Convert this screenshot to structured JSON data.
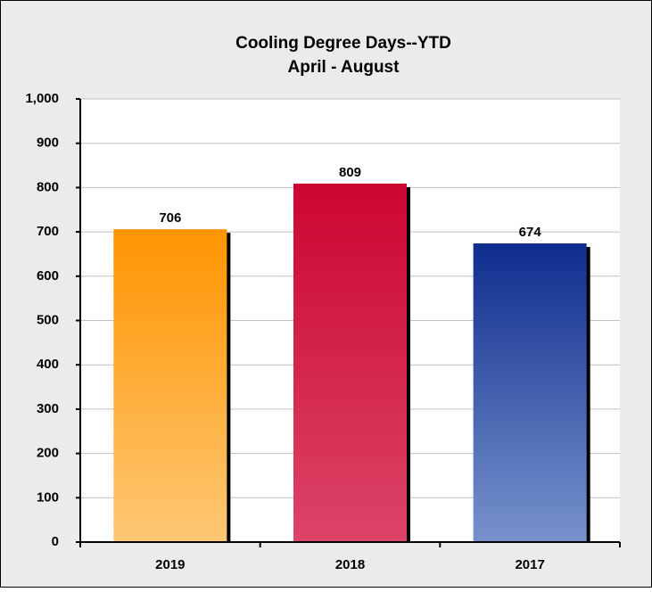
{
  "chart_data": {
    "type": "bar",
    "title": "Cooling Degree Days--YTD",
    "subtitle": "April  - August",
    "categories": [
      "2019",
      "2018",
      "2017"
    ],
    "values": [
      706,
      809,
      674
    ],
    "colors": [
      "#ff9400",
      "#cc0630",
      "#0f2d8e"
    ],
    "gradient_bottom_colors": [
      "#ffc874",
      "#dc4468",
      "#7792cc"
    ],
    "ylim": [
      0,
      1000
    ],
    "yticks": [
      0,
      100,
      200,
      300,
      400,
      500,
      600,
      700,
      800,
      900,
      {
        "value": 1000,
        "label": "1,000"
      }
    ],
    "grid": true
  }
}
